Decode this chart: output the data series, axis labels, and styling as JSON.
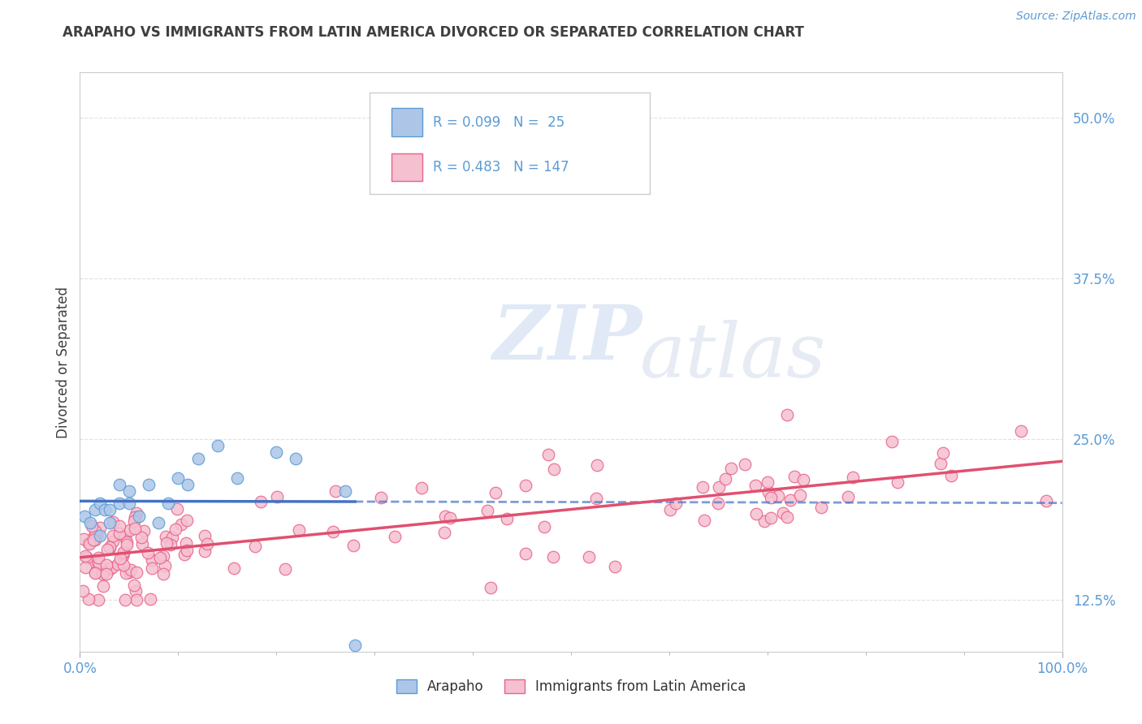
{
  "title": "ARAPAHO VS IMMIGRANTS FROM LATIN AMERICA DIVORCED OR SEPARATED CORRELATION CHART",
  "source": "Source: ZipAtlas.com",
  "ylabel": "Divorced or Separated",
  "R1": 0.099,
  "N1": 25,
  "R2": 0.483,
  "N2": 147,
  "color1_fill": "#adc6e8",
  "color1_edge": "#5b9bd5",
  "color2_fill": "#f5c0d0",
  "color2_edge": "#e8638a",
  "line1_color": "#4472c4",
  "line2_color": "#e05070",
  "xlim": [
    0.0,
    1.0
  ],
  "ylim": [
    0.085,
    0.535
  ],
  "yticks": [
    0.125,
    0.25,
    0.375,
    0.5
  ],
  "ytick_labels": [
    "12.5%",
    "25.0%",
    "37.5%",
    "50.0%"
  ],
  "xtick_left": "0.0%",
  "xtick_right": "100.0%",
  "series1_label": "Arapaho",
  "series2_label": "Immigrants from Latin America",
  "watermark_zip": "ZIP",
  "watermark_atlas": "atlas",
  "background_color": "#ffffff",
  "grid_color": "#e0e0e0",
  "tick_color": "#5b9bd5",
  "title_color": "#3f3f3f",
  "source_color": "#5b9bd5"
}
